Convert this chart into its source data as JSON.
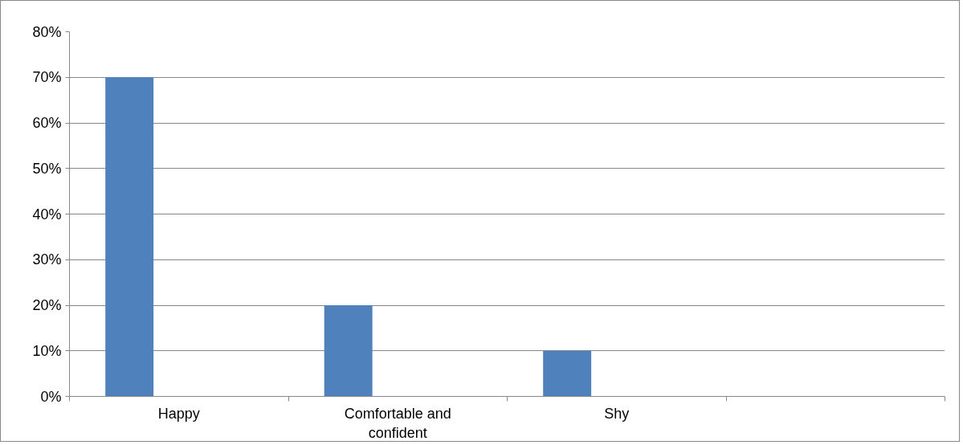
{
  "chart_data": {
    "type": "bar",
    "categories": [
      "Happy",
      "Comfortable and confident",
      "Shy",
      null
    ],
    "values": [
      70,
      20,
      10,
      null
    ],
    "color": "#4f81bd",
    "ylim": [
      0,
      80
    ],
    "yticks": [
      {
        "value": 0,
        "label": "0%"
      },
      {
        "value": 10,
        "label": "10%"
      },
      {
        "value": 20,
        "label": "20%"
      },
      {
        "value": 30,
        "label": "30%"
      },
      {
        "value": 40,
        "label": "40%"
      },
      {
        "value": 50,
        "label": "50%"
      },
      {
        "value": 60,
        "label": "60%"
      },
      {
        "value": 70,
        "label": "70%"
      },
      {
        "value": 80,
        "label": "80%"
      }
    ],
    "grid": "y"
  }
}
